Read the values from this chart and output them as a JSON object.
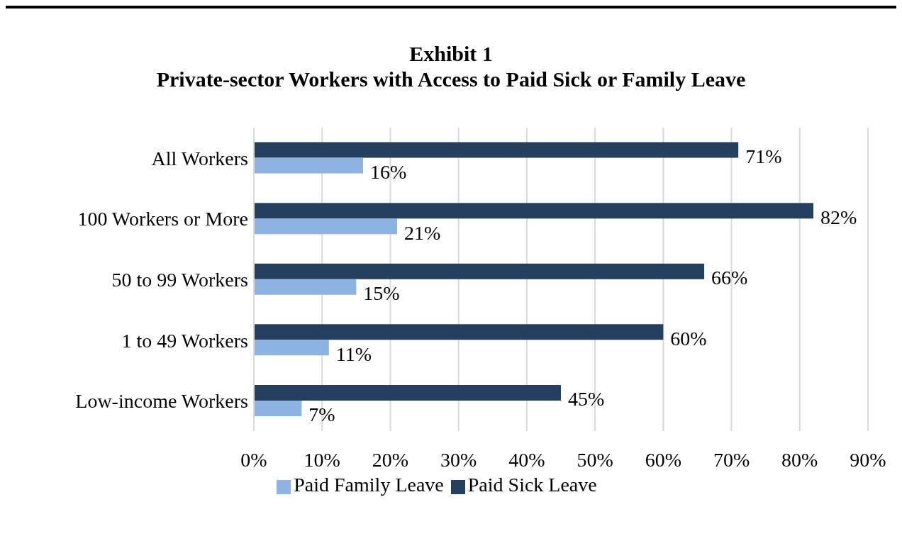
{
  "chart_data": {
    "type": "bar",
    "orientation": "horizontal",
    "title": "Exhibit 1",
    "subtitle": "Private-sector Workers with Access to Paid Sick or Family Leave",
    "categories": [
      "All Workers",
      "100 Workers or More",
      "50 to 99 Workers",
      "1 to 49 Workers",
      "Low-income Workers"
    ],
    "series": [
      {
        "name": "Paid Sick Leave",
        "color": "#253f5e",
        "values": [
          71,
          82,
          66,
          60,
          45
        ],
        "value_labels": [
          "71%",
          "82%",
          "66%",
          "60%",
          "45%"
        ]
      },
      {
        "name": "Paid Family Leave",
        "color": "#8db3e2",
        "values": [
          16,
          21,
          15,
          11,
          7
        ],
        "value_labels": [
          "16%",
          "21%",
          "15%",
          "11%",
          "7%"
        ]
      }
    ],
    "xlim": [
      0,
      90
    ],
    "xticks": [
      {
        "value": 0,
        "label": "0%"
      },
      {
        "value": 10,
        "label": "10%"
      },
      {
        "value": 20,
        "label": "20%"
      },
      {
        "value": 30,
        "label": "30%"
      },
      {
        "value": 40,
        "label": "40%"
      },
      {
        "value": 50,
        "label": "50%"
      },
      {
        "value": 60,
        "label": "60%"
      },
      {
        "value": 70,
        "label": "70%"
      },
      {
        "value": 80,
        "label": "80%"
      },
      {
        "value": 90,
        "label": "90%"
      }
    ],
    "grid": "x",
    "legend": "bottom"
  }
}
